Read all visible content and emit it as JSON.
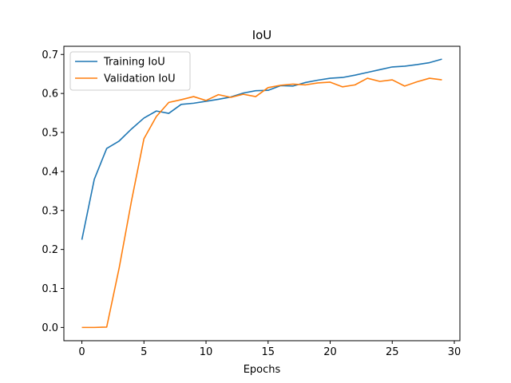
{
  "chart_data": {
    "type": "line",
    "title": "IoU",
    "xlabel": "Epochs",
    "ylabel": "",
    "xlim": [
      -1.45,
      30.45
    ],
    "ylim": [
      -0.034,
      0.721
    ],
    "xticks": [
      0,
      5,
      10,
      15,
      20,
      25,
      30
    ],
    "yticks": [
      0.0,
      0.1,
      0.2,
      0.3,
      0.4,
      0.5,
      0.6,
      0.7
    ],
    "xtick_labels": [
      "0",
      "5",
      "10",
      "15",
      "20",
      "25",
      "30"
    ],
    "ytick_labels": [
      "0.0",
      "0.1",
      "0.2",
      "0.3",
      "0.4",
      "0.5",
      "0.6",
      "0.7"
    ],
    "grid": false,
    "legend_position": "top-left",
    "x": [
      0,
      1,
      2,
      3,
      4,
      5,
      6,
      7,
      8,
      9,
      10,
      11,
      12,
      13,
      14,
      15,
      16,
      17,
      18,
      19,
      20,
      21,
      22,
      23,
      24,
      25,
      26,
      27,
      28,
      29
    ],
    "series": [
      {
        "name": "Training IoU",
        "color": "#1f77b4",
        "values": [
          0.225,
          0.38,
          0.459,
          0.478,
          0.509,
          0.537,
          0.555,
          0.549,
          0.572,
          0.575,
          0.58,
          0.585,
          0.591,
          0.601,
          0.607,
          0.608,
          0.62,
          0.619,
          0.628,
          0.634,
          0.639,
          0.641,
          0.647,
          0.654,
          0.661,
          0.668,
          0.67,
          0.674,
          0.679,
          0.688
        ]
      },
      {
        "name": "Validation IoU",
        "color": "#ff7f0e",
        "values": [
          0.0,
          0.0,
          0.001,
          0.152,
          0.325,
          0.484,
          0.541,
          0.577,
          0.584,
          0.592,
          0.582,
          0.597,
          0.59,
          0.598,
          0.592,
          0.615,
          0.621,
          0.624,
          0.622,
          0.627,
          0.629,
          0.617,
          0.622,
          0.639,
          0.631,
          0.635,
          0.619,
          0.63,
          0.639,
          0.635
        ]
      }
    ]
  }
}
